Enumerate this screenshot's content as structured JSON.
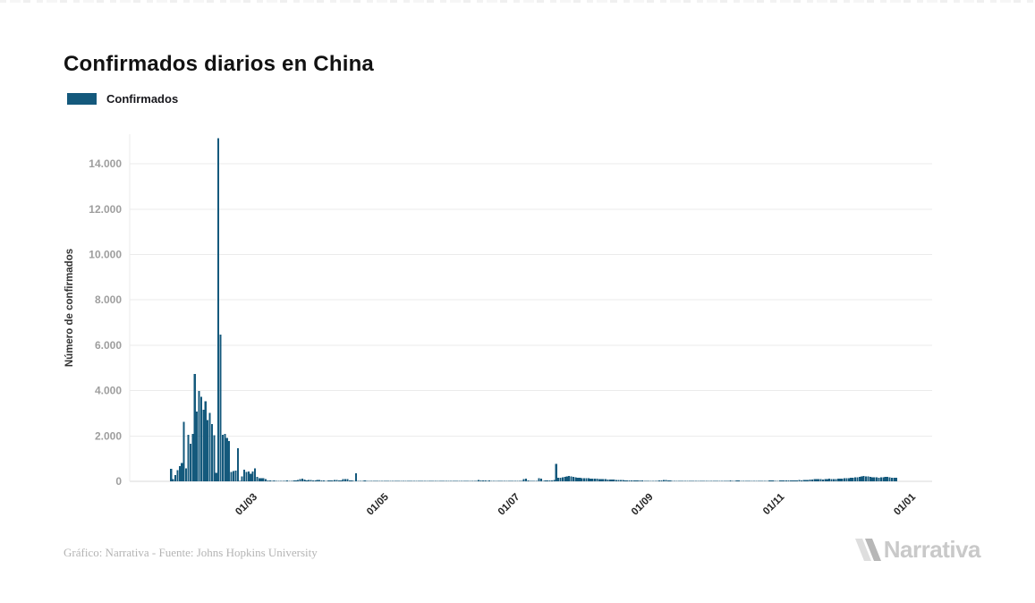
{
  "header": {
    "title": "Confirmados diarios en China"
  },
  "legend": {
    "items": [
      {
        "label": "Confirmados",
        "color": "#14597c"
      }
    ]
  },
  "footer": {
    "credit": "Gráfico: Narrativa - Fuente: Johns Hopkins University",
    "brand": "Narrativa"
  },
  "chart_data": {
    "type": "bar",
    "title": "Confirmados diarios en China",
    "xlabel": "",
    "ylabel": "Número de confirmados",
    "series_name": "Confirmados",
    "bar_color": "#14597c",
    "grid": true,
    "legend_position": "top-left",
    "ylim": [
      0,
      15200
    ],
    "y_ticks": [
      0,
      2000,
      4000,
      6000,
      8000,
      10000,
      12000,
      14000
    ],
    "y_tick_labels": [
      "0",
      "2.000",
      "4.000",
      "6.000",
      "8.000",
      "10.000",
      "12.000",
      "14.000"
    ],
    "x_tick_labels": [
      "01/03",
      "01/05",
      "01/07",
      "01/09",
      "01/11",
      "01/01"
    ],
    "x_tick_day_offsets": [
      39,
      100,
      161,
      223,
      284,
      345
    ],
    "start_date": "2020-01-22",
    "peak_value": 15136,
    "values": [
      548,
      95,
      277,
      486,
      669,
      802,
      2632,
      578,
      2054,
      1661,
      2089,
      4739,
      3086,
      3991,
      3733,
      3147,
      3523,
      2704,
      3015,
      2525,
      2032,
      373,
      15136,
      6463,
      2055,
      2100,
      1921,
      1777,
      408,
      458,
      473,
      1451,
      21,
      219,
      513,
      412,
      434,
      328,
      428,
      579,
      206,
      130,
      142,
      147,
      102,
      46,
      45,
      20,
      31,
      26,
      10,
      15,
      21,
      23,
      32,
      27,
      24,
      47,
      41,
      56,
      105,
      114,
      78,
      47,
      67,
      55,
      47,
      32,
      50,
      55,
      36,
      35,
      19,
      31,
      39,
      32,
      62,
      63,
      42,
      46,
      99,
      108,
      89,
      46,
      46,
      26,
      352,
      27,
      12,
      11,
      30,
      10,
      6,
      6,
      11,
      3,
      6,
      22,
      4,
      12,
      12,
      2,
      3,
      3,
      2,
      2,
      2,
      1,
      14,
      20,
      17,
      7,
      7,
      4,
      8,
      5,
      7,
      7,
      6,
      5,
      4,
      4,
      3,
      11,
      7,
      7,
      1,
      2,
      4,
      2,
      16,
      16,
      5,
      1,
      4,
      5,
      5,
      4,
      4,
      5,
      5,
      11,
      11,
      57,
      39,
      40,
      44,
      28,
      32,
      27,
      26,
      18,
      13,
      19,
      13,
      21,
      17,
      14,
      12,
      12,
      3,
      6,
      8,
      12,
      95,
      115,
      30,
      25,
      18,
      20,
      22,
      135,
      120,
      25,
      30,
      35,
      40,
      45,
      60,
      760,
      150,
      165,
      180,
      205,
      220,
      235,
      210,
      190,
      175,
      160,
      150,
      145,
      140,
      135,
      130,
      125,
      120,
      115,
      110,
      105,
      100,
      95,
      90,
      85,
      80,
      75,
      70,
      65,
      60,
      55,
      50,
      48,
      45,
      42,
      40,
      38,
      36,
      34,
      32,
      30,
      28,
      26,
      25,
      24,
      22,
      20,
      25,
      30,
      45,
      60,
      55,
      40,
      30,
      25,
      22,
      20,
      18,
      20,
      22,
      18,
      16,
      18,
      20,
      16,
      14,
      16,
      18,
      20,
      15,
      14,
      16,
      18,
      20,
      22,
      20,
      18,
      20,
      25,
      20,
      18,
      30,
      25,
      22,
      35,
      30,
      25,
      20,
      22,
      25,
      20,
      18,
      20,
      24,
      28,
      25,
      20,
      18,
      22,
      30,
      42,
      35,
      28,
      25,
      30,
      35,
      30,
      32,
      36,
      40,
      38,
      42,
      45,
      50,
      48,
      52,
      60,
      65,
      70,
      80,
      90,
      95,
      100,
      90,
      85,
      95,
      105,
      110,
      100,
      95,
      105,
      115,
      120,
      125,
      130,
      135,
      140,
      150,
      160,
      170,
      180,
      200,
      215,
      230,
      225,
      210,
      195,
      185,
      175,
      170,
      165,
      175,
      185,
      195,
      190,
      180,
      165,
      155,
      150
    ]
  }
}
